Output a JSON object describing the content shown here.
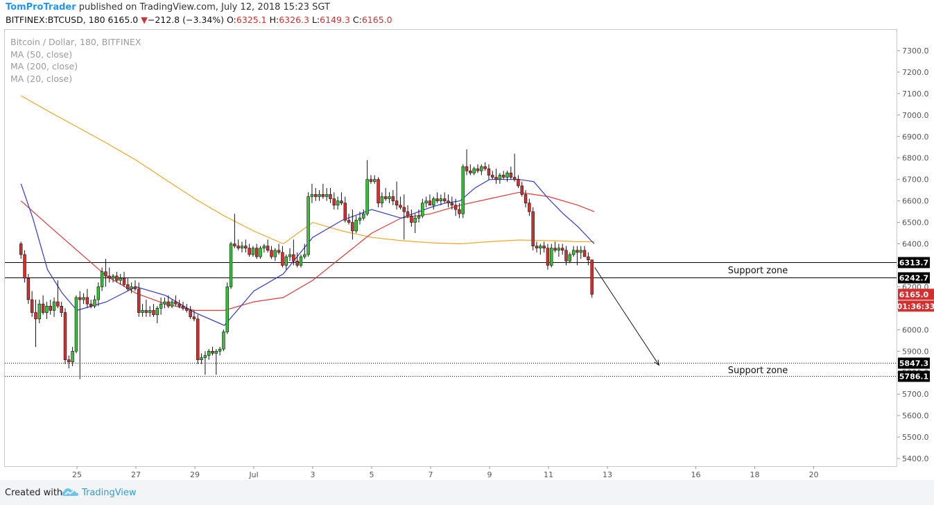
{
  "header": {
    "author": "TomProTrader",
    "published": "published on TradingView.com, July 12, 2018 15:23 SGT",
    "symbol": "BITFINEX:BTCUSD, 180",
    "last": "6165.0",
    "change_arrow": "▼",
    "change": "−212.8 (−3.34%)",
    "o_label": "O:",
    "o": "6325.1",
    "h_label": "H:",
    "h": "6326.3",
    "l_label": "L:",
    "l": "6149.3",
    "c_label": "C:",
    "c": "6165.0"
  },
  "legend": {
    "title": "Bitcoin / Dollar, 180, BITFINEX",
    "ma1": "MA (50, close)",
    "ma2": "MA (200, close)",
    "ma3": "MA (20, close)"
  },
  "footer": {
    "created": "Created with",
    "brand": "TradingView",
    "logo_icon": "tradingview-cloud-icon"
  },
  "chart_data": {
    "type": "candlestick",
    "ylim": [
      5320,
      7440
    ],
    "y_ticks": [
      5400,
      5500,
      5600,
      5700,
      5800,
      5900,
      6000,
      6100,
      6200,
      6300,
      6400,
      6500,
      6600,
      6700,
      6800,
      6900,
      7000,
      7100,
      7200,
      7300
    ],
    "x_range_days": [
      23.1,
      23.05
    ],
    "x_ticks": [
      {
        "day": 25,
        "label": "25"
      },
      {
        "day": 27,
        "label": "27"
      },
      {
        "day": 29,
        "label": "29"
      },
      {
        "day": 31,
        "label": "Jul"
      },
      {
        "day": 33,
        "label": "3"
      },
      {
        "day": 35,
        "label": "5"
      },
      {
        "day": 37,
        "label": "7"
      },
      {
        "day": 39,
        "label": "9"
      },
      {
        "day": 41,
        "label": "11"
      },
      {
        "day": 43,
        "label": "13"
      },
      {
        "day": 46,
        "label": "16"
      },
      {
        "day": 48,
        "label": "18"
      },
      {
        "day": 50,
        "label": "20"
      }
    ],
    "support_lines": [
      {
        "value": 6313.7,
        "label": "6313.7",
        "style": "solid"
      },
      {
        "value": 6242.7,
        "label": "6242.7",
        "style": "solid"
      },
      {
        "value": 5847.3,
        "label": "5847.3",
        "style": "dotted"
      },
      {
        "value": 5786.1,
        "label": "5786.1",
        "style": "dotted"
      }
    ],
    "annotations": [
      {
        "text": "Support zone",
        "value": 6275
      },
      {
        "text": "Support zone",
        "value": 5810
      }
    ],
    "arrow": {
      "from": [
        42.57,
        6290
      ],
      "to": [
        44.75,
        5835
      ]
    },
    "last_price": {
      "value": 6165.0,
      "label": "6165.0",
      "countdown": "01:36:33",
      "color": "#d32f2f"
    },
    "colors": {
      "up": "#36c236",
      "down": "#d32f2f",
      "ma20": "#2f36d8",
      "ma50": "#e33737",
      "ma200": "#f5a623"
    },
    "ma200": [
      [
        23.1,
        7090
      ],
      [
        24,
        7020
      ],
      [
        25,
        6945
      ],
      [
        26,
        6870
      ],
      [
        27,
        6790
      ],
      [
        28,
        6700
      ],
      [
        29,
        6610
      ],
      [
        30,
        6530
      ],
      [
        31,
        6460
      ],
      [
        32,
        6400
      ],
      [
        33,
        6500
      ],
      [
        34,
        6460
      ],
      [
        35,
        6430
      ],
      [
        36,
        6415
      ],
      [
        37,
        6405
      ],
      [
        38,
        6400
      ],
      [
        39,
        6410
      ],
      [
        40,
        6418
      ],
      [
        41,
        6415
      ],
      [
        42,
        6410
      ],
      [
        42.55,
        6410
      ]
    ],
    "ma50": [
      [
        23.1,
        6600
      ],
      [
        24,
        6490
      ],
      [
        25,
        6370
      ],
      [
        26,
        6250
      ],
      [
        27,
        6170
      ],
      [
        28,
        6120
      ],
      [
        29,
        6090
      ],
      [
        30,
        6090
      ],
      [
        31,
        6130
      ],
      [
        32,
        6150
      ],
      [
        33,
        6230
      ],
      [
        34,
        6340
      ],
      [
        35,
        6450
      ],
      [
        36,
        6520
      ],
      [
        37,
        6540
      ],
      [
        38,
        6580
      ],
      [
        39,
        6610
      ],
      [
        40,
        6640
      ],
      [
        41,
        6620
      ],
      [
        42,
        6580
      ],
      [
        42.55,
        6550
      ]
    ],
    "ma20": [
      [
        23.1,
        6680
      ],
      [
        23.5,
        6520
      ],
      [
        24,
        6280
      ],
      [
        24.5,
        6170
      ],
      [
        25,
        6090
      ],
      [
        26,
        6130
      ],
      [
        27,
        6200
      ],
      [
        28,
        6160
      ],
      [
        29,
        6080
      ],
      [
        30,
        6020
      ],
      [
        30.5,
        6100
      ],
      [
        31,
        6180
      ],
      [
        32,
        6260
      ],
      [
        33,
        6430
      ],
      [
        34,
        6510
      ],
      [
        35,
        6560
      ],
      [
        36,
        6520
      ],
      [
        36.5,
        6545
      ],
      [
        37,
        6570
      ],
      [
        37.5,
        6590
      ],
      [
        38,
        6600
      ],
      [
        38.5,
        6660
      ],
      [
        39,
        6700
      ],
      [
        40,
        6700
      ],
      [
        40.5,
        6690
      ],
      [
        41,
        6610
      ],
      [
        41.5,
        6540
      ],
      [
        42,
        6480
      ],
      [
        42.55,
        6400
      ]
    ],
    "candles": [
      [
        23.1,
        6400,
        6410,
        6330,
        6350
      ],
      [
        23.225,
        6350,
        6370,
        6220,
        6240
      ],
      [
        23.35,
        6240,
        6260,
        6120,
        6140
      ],
      [
        23.475,
        6140,
        6180,
        6060,
        6080
      ],
      [
        23.6,
        6080,
        6140,
        5920,
        6050
      ],
      [
        23.725,
        6050,
        6140,
        6030,
        6120
      ],
      [
        23.85,
        6120,
        6160,
        6070,
        6080
      ],
      [
        23.975,
        6080,
        6130,
        6050,
        6110
      ],
      [
        24.1,
        6110,
        6140,
        6070,
        6090
      ],
      [
        24.225,
        6090,
        6150,
        6060,
        6130
      ],
      [
        24.35,
        6130,
        6230,
        6100,
        6110
      ],
      [
        24.475,
        6110,
        6130,
        6060,
        6080
      ],
      [
        24.6,
        6080,
        6100,
        5840,
        5860
      ],
      [
        24.725,
        5860,
        5880,
        5820,
        5850
      ],
      [
        24.85,
        5850,
        5920,
        5830,
        5900
      ],
      [
        24.975,
        5900,
        6160,
        5890,
        6150
      ],
      [
        25.1,
        6150,
        6180,
        5770,
        6140
      ],
      [
        25.225,
        6140,
        6170,
        6120,
        6150
      ],
      [
        25.35,
        6150,
        6190,
        6100,
        6120
      ],
      [
        25.475,
        6120,
        6140,
        6100,
        6110
      ],
      [
        25.6,
        6110,
        6160,
        6100,
        6140
      ],
      [
        25.725,
        6140,
        6220,
        6110,
        6200
      ],
      [
        25.85,
        6200,
        6290,
        6180,
        6270
      ],
      [
        25.975,
        6270,
        6330,
        6200,
        6250
      ],
      [
        26.1,
        6250,
        6290,
        6220,
        6240
      ],
      [
        26.225,
        6240,
        6260,
        6220,
        6250
      ],
      [
        26.35,
        6250,
        6270,
        6220,
        6230
      ],
      [
        26.475,
        6230,
        6260,
        6210,
        6240
      ],
      [
        26.6,
        6240,
        6270,
        6200,
        6210
      ],
      [
        26.725,
        6210,
        6240,
        6180,
        6190
      ],
      [
        26.85,
        6190,
        6220,
        6170,
        6200
      ],
      [
        26.975,
        6200,
        6230,
        6180,
        6190
      ],
      [
        27.1,
        6190,
        6220,
        6060,
        6080
      ],
      [
        27.225,
        6080,
        6120,
        6060,
        6090
      ],
      [
        27.35,
        6090,
        6140,
        6060,
        6080
      ],
      [
        27.475,
        6080,
        6110,
        6060,
        6090
      ],
      [
        27.6,
        6090,
        6120,
        6060,
        6070
      ],
      [
        27.725,
        6070,
        6110,
        6030,
        6100
      ],
      [
        27.85,
        6100,
        6150,
        6070,
        6120
      ],
      [
        27.975,
        6120,
        6150,
        6100,
        6130
      ],
      [
        28.1,
        6130,
        6160,
        6100,
        6110
      ],
      [
        28.225,
        6110,
        6140,
        6100,
        6130
      ],
      [
        28.35,
        6130,
        6160,
        6110,
        6120
      ],
      [
        28.475,
        6120,
        6140,
        6100,
        6110
      ],
      [
        28.6,
        6110,
        6130,
        6090,
        6100
      ],
      [
        28.725,
        6100,
        6120,
        6080,
        6090
      ],
      [
        28.85,
        6090,
        6110,
        6050,
        6060
      ],
      [
        28.975,
        6060,
        6090,
        6040,
        6050
      ],
      [
        29.1,
        6050,
        6070,
        5840,
        5860
      ],
      [
        29.225,
        5860,
        5890,
        5840,
        5870
      ],
      [
        29.35,
        5870,
        5900,
        5790,
        5880
      ],
      [
        29.475,
        5880,
        5910,
        5860,
        5900
      ],
      [
        29.6,
        5900,
        5920,
        5880,
        5890
      ],
      [
        29.725,
        5890,
        5910,
        5790,
        5900
      ],
      [
        29.85,
        5900,
        5920,
        5880,
        5910
      ],
      [
        29.975,
        5910,
        6000,
        5900,
        5990
      ],
      [
        30.1,
        5990,
        6220,
        5980,
        6200
      ],
      [
        30.225,
        6200,
        6410,
        6190,
        6400
      ],
      [
        30.35,
        6400,
        6540,
        6380,
        6390
      ],
      [
        30.475,
        6390,
        6420,
        6370,
        6380
      ],
      [
        30.6,
        6380,
        6410,
        6360,
        6390
      ],
      [
        30.725,
        6390,
        6420,
        6360,
        6380
      ],
      [
        30.85,
        6380,
        6400,
        6340,
        6350
      ],
      [
        30.975,
        6350,
        6390,
        6340,
        6380
      ],
      [
        31.1,
        6380,
        6400,
        6330,
        6340
      ],
      [
        31.225,
        6340,
        6390,
        6330,
        6380
      ],
      [
        31.35,
        6380,
        6400,
        6360,
        6390
      ],
      [
        31.475,
        6390,
        6420,
        6360,
        6370
      ],
      [
        31.6,
        6370,
        6390,
        6330,
        6340
      ],
      [
        31.725,
        6340,
        6380,
        6320,
        6370
      ],
      [
        31.85,
        6370,
        6400,
        6350,
        6360
      ],
      [
        31.975,
        6360,
        6390,
        6290,
        6300
      ],
      [
        32.1,
        6300,
        6350,
        6280,
        6340
      ],
      [
        32.225,
        6340,
        6380,
        6320,
        6350
      ],
      [
        32.35,
        6350,
        6420,
        6300,
        6320
      ],
      [
        32.475,
        6320,
        6360,
        6290,
        6300
      ],
      [
        32.6,
        6300,
        6350,
        6290,
        6340
      ],
      [
        32.725,
        6340,
        6400,
        6330,
        6350
      ],
      [
        32.85,
        6350,
        6640,
        6340,
        6620
      ],
      [
        32.975,
        6620,
        6680,
        6590,
        6630
      ],
      [
        33.1,
        6630,
        6660,
        6600,
        6620
      ],
      [
        33.225,
        6620,
        6650,
        6600,
        6630
      ],
      [
        33.35,
        6630,
        6680,
        6610,
        6620
      ],
      [
        33.475,
        6620,
        6660,
        6600,
        6630
      ],
      [
        33.6,
        6630,
        6660,
        6590,
        6610
      ],
      [
        33.725,
        6610,
        6640,
        6560,
        6580
      ],
      [
        33.85,
        6580,
        6620,
        6560,
        6600
      ],
      [
        33.975,
        6600,
        6640,
        6580,
        6590
      ],
      [
        34.1,
        6590,
        6620,
        6500,
        6510
      ],
      [
        34.225,
        6510,
        6540,
        6490,
        6500
      ],
      [
        34.35,
        6500,
        6560,
        6420,
        6460
      ],
      [
        34.475,
        6460,
        6530,
        6450,
        6510
      ],
      [
        34.6,
        6510,
        6550,
        6490,
        6520
      ],
      [
        34.725,
        6520,
        6560,
        6510,
        6540
      ],
      [
        34.85,
        6540,
        6790,
        6530,
        6700
      ],
      [
        34.975,
        6700,
        6720,
        6680,
        6690
      ],
      [
        35.1,
        6690,
        6720,
        6680,
        6700
      ],
      [
        35.225,
        6700,
        6710,
        6570,
        6590
      ],
      [
        35.35,
        6590,
        6640,
        6570,
        6620
      ],
      [
        35.475,
        6620,
        6660,
        6600,
        6610
      ],
      [
        35.6,
        6610,
        6640,
        6590,
        6620
      ],
      [
        35.725,
        6620,
        6650,
        6580,
        6600
      ],
      [
        35.85,
        6600,
        6690,
        6560,
        6580
      ],
      [
        35.975,
        6580,
        6620,
        6560,
        6570
      ],
      [
        36.1,
        6570,
        6630,
        6420,
        6550
      ],
      [
        36.225,
        6550,
        6580,
        6520,
        6530
      ],
      [
        36.35,
        6530,
        6560,
        6480,
        6500
      ],
      [
        36.475,
        6500,
        6540,
        6450,
        6520
      ],
      [
        36.6,
        6520,
        6560,
        6500,
        6530
      ],
      [
        36.725,
        6530,
        6610,
        6520,
        6590
      ],
      [
        36.85,
        6590,
        6620,
        6570,
        6600
      ],
      [
        36.975,
        6600,
        6630,
        6580,
        6580
      ],
      [
        37.1,
        6580,
        6620,
        6560,
        6610
      ],
      [
        37.225,
        6610,
        6640,
        6590,
        6600
      ],
      [
        37.35,
        6600,
        6630,
        6580,
        6610
      ],
      [
        37.475,
        6610,
        6640,
        6590,
        6600
      ],
      [
        37.6,
        6600,
        6630,
        6570,
        6590
      ],
      [
        37.725,
        6590,
        6620,
        6560,
        6580
      ],
      [
        37.85,
        6580,
        6610,
        6530,
        6560
      ],
      [
        37.975,
        6560,
        6590,
        6520,
        6540
      ],
      [
        38.1,
        6540,
        6770,
        6520,
        6760
      ],
      [
        38.225,
        6760,
        6840,
        6720,
        6740
      ],
      [
        38.35,
        6740,
        6770,
        6720,
        6730
      ],
      [
        38.475,
        6730,
        6760,
        6720,
        6750
      ],
      [
        38.6,
        6750,
        6770,
        6730,
        6740
      ],
      [
        38.725,
        6740,
        6770,
        6720,
        6760
      ],
      [
        38.85,
        6760,
        6780,
        6740,
        6750
      ],
      [
        38.975,
        6750,
        6770,
        6700,
        6720
      ],
      [
        39.1,
        6720,
        6740,
        6700,
        6710
      ],
      [
        39.225,
        6710,
        6750,
        6680,
        6700
      ],
      [
        39.35,
        6700,
        6730,
        6680,
        6720
      ],
      [
        39.475,
        6720,
        6740,
        6700,
        6710
      ],
      [
        39.6,
        6710,
        6740,
        6690,
        6730
      ],
      [
        39.725,
        6730,
        6760,
        6700,
        6710
      ],
      [
        39.85,
        6710,
        6820,
        6690,
        6700
      ],
      [
        39.975,
        6700,
        6720,
        6660,
        6670
      ],
      [
        40.1,
        6670,
        6690,
        6620,
        6630
      ],
      [
        40.225,
        6630,
        6650,
        6570,
        6590
      ],
      [
        40.35,
        6590,
        6610,
        6530,
        6550
      ],
      [
        40.475,
        6550,
        6570,
        6370,
        6390
      ],
      [
        40.6,
        6390,
        6410,
        6360,
        6380
      ],
      [
        40.725,
        6380,
        6400,
        6350,
        6390
      ],
      [
        40.85,
        6390,
        6410,
        6360,
        6380
      ],
      [
        40.975,
        6380,
        6400,
        6280,
        6300
      ],
      [
        41.1,
        6300,
        6400,
        6290,
        6380
      ],
      [
        41.225,
        6380,
        6410,
        6360,
        6370
      ],
      [
        41.35,
        6370,
        6400,
        6340,
        6380
      ],
      [
        41.475,
        6380,
        6400,
        6350,
        6370
      ],
      [
        41.6,
        6370,
        6390,
        6300,
        6320
      ],
      [
        41.725,
        6320,
        6360,
        6310,
        6350
      ],
      [
        41.85,
        6350,
        6390,
        6340,
        6370
      ],
      [
        41.975,
        6370,
        6390,
        6300,
        6360
      ],
      [
        42.1,
        6360,
        6390,
        6330,
        6370
      ],
      [
        42.225,
        6370,
        6390,
        6350,
        6340
      ],
      [
        42.35,
        6340,
        6360,
        6300,
        6325
      ],
      [
        42.475,
        6325.1,
        6326.3,
        6149.3,
        6165.0
      ]
    ]
  }
}
